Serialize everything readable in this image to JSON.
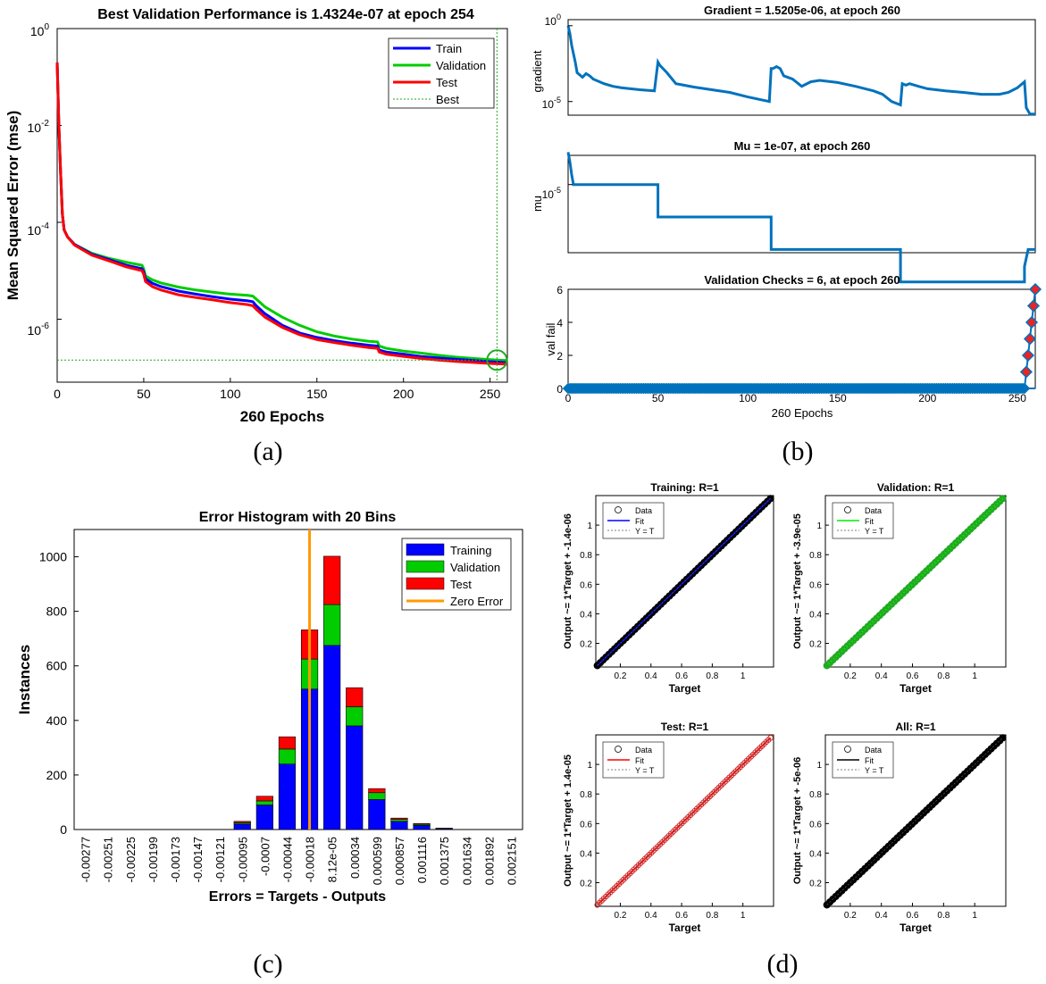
{
  "figure": {
    "panel_labels": [
      "(a)",
      "(b)",
      "(c)",
      "(d)"
    ]
  },
  "colors": {
    "train": "#0000ff",
    "validation": "#00cc00",
    "test": "#ff0000",
    "best": "#22aa22",
    "matlab_blue": "#0072bd",
    "zero_error": "#ff9900",
    "val_marker": "#ee2222",
    "black": "#000000"
  },
  "chart_data": [
    {
      "id": "a",
      "type": "line",
      "yscale": "log",
      "title": "Best Validation Performance is 1.4324e-07 at epoch 254",
      "xlabel": "260 Epochs",
      "ylabel": "Mean Squared Error  (mse)",
      "xlim": [
        0,
        260
      ],
      "ylim_exp": [
        -7.3,
        0
      ],
      "x_ticks": [
        0,
        50,
        100,
        150,
        200,
        250
      ],
      "y_ticks": [
        {
          "label": "10",
          "exp": "0",
          "at": 0
        },
        {
          "label": "10",
          "exp": "-2",
          "at": -2
        },
        {
          "label": "10",
          "exp": "-4",
          "at": -4
        },
        {
          "label": "10",
          "exp": "-6",
          "at": -6
        }
      ],
      "legend": [
        "Train",
        "Validation",
        "Test",
        "Best"
      ],
      "best": {
        "epoch": 254,
        "value": 1.4324e-07
      },
      "series": [
        {
          "name": "Train",
          "x": [
            0,
            1,
            2,
            3,
            4,
            6,
            10,
            20,
            30,
            40,
            49,
            50,
            51,
            55,
            60,
            70,
            80,
            90,
            100,
            110,
            113,
            115,
            120,
            130,
            140,
            150,
            160,
            170,
            180,
            185,
            186,
            190,
            200,
            210,
            220,
            230,
            240,
            250,
            254,
            260
          ],
          "y": [
            0.2,
            0.01,
            0.001,
            0.00015,
            7e-05,
            5e-05,
            3.5e-05,
            2.2e-05,
            1.7e-05,
            1.3e-05,
            1.1e-05,
            9.5e-06,
            6.8e-06,
            5.5e-06,
            4.7e-06,
            3.8e-06,
            3.3e-06,
            2.9e-06,
            2.6e-06,
            2.4e-06,
            2.3e-06,
            1.9e-06,
            1.3e-06,
            7.5e-07,
            5.2e-07,
            4.2e-07,
            3.6e-07,
            3.2e-07,
            2.9e-07,
            2.8e-07,
            2.3e-07,
            2.1e-07,
            1.9e-07,
            1.7e-07,
            1.58e-07,
            1.49e-07,
            1.41e-07,
            1.33e-07,
            1.3e-07,
            1.27e-07
          ]
        },
        {
          "name": "Validation",
          "x": [
            0,
            1,
            2,
            3,
            4,
            6,
            10,
            20,
            30,
            40,
            49,
            50,
            51,
            55,
            60,
            70,
            80,
            90,
            100,
            110,
            113,
            115,
            120,
            130,
            140,
            150,
            160,
            170,
            180,
            185,
            186,
            190,
            200,
            210,
            220,
            230,
            240,
            250,
            254,
            260
          ],
          "y": [
            0.2,
            0.01,
            0.001,
            0.00015,
            7e-05,
            5e-05,
            3.5e-05,
            2.3e-05,
            1.8e-05,
            1.5e-05,
            1.3e-05,
            1.1e-05,
            7.8e-06,
            6.5e-06,
            5.6e-06,
            4.6e-06,
            4e-06,
            3.6e-06,
            3.3e-06,
            3.1e-06,
            3e-06,
            2.6e-06,
            1.8e-06,
            1.1e-06,
            7.5e-07,
            5.5e-07,
            4.5e-07,
            3.9e-07,
            3.5e-07,
            3.4e-07,
            2.8e-07,
            2.5e-07,
            2.2e-07,
            2e-07,
            1.8e-07,
            1.65e-07,
            1.55e-07,
            1.46e-07,
            1.43e-07,
            1.4e-07
          ]
        },
        {
          "name": "Test",
          "x": [
            0,
            1,
            2,
            3,
            4,
            6,
            10,
            20,
            30,
            40,
            49,
            50,
            51,
            55,
            60,
            70,
            80,
            90,
            100,
            110,
            113,
            115,
            120,
            130,
            140,
            150,
            160,
            170,
            180,
            185,
            186,
            190,
            200,
            210,
            220,
            230,
            240,
            250,
            254,
            260
          ],
          "y": [
            0.2,
            0.01,
            0.001,
            0.00015,
            7e-05,
            5e-05,
            3.4e-05,
            2.1e-05,
            1.6e-05,
            1.2e-05,
            1e-05,
            8.5e-06,
            6e-06,
            4.7e-06,
            4e-06,
            3.2e-06,
            2.8e-06,
            2.5e-06,
            2.2e-06,
            2e-06,
            1.9e-06,
            1.6e-06,
            1.1e-06,
            6.8e-07,
            4.8e-07,
            3.8e-07,
            3.3e-07,
            2.9e-07,
            2.6e-07,
            2.5e-07,
            2.1e-07,
            1.9e-07,
            1.7e-07,
            1.55e-07,
            1.43e-07,
            1.35e-07,
            1.28e-07,
            1.22e-07,
            1.2e-07,
            1.18e-07
          ]
        }
      ]
    },
    {
      "id": "b1",
      "type": "line",
      "yscale": "log",
      "title": "Gradient = 1.5205e-06, at epoch 260",
      "ylabel": "gradient",
      "xlim": [
        0,
        260
      ],
      "ylim_exp": [
        -5.9,
        0.4
      ],
      "y_ticks": [
        {
          "label": "10",
          "exp": "0",
          "at": 0
        },
        {
          "label": "10",
          "exp": "-5",
          "at": -5
        }
      ],
      "x": [
        0,
        1,
        2,
        4,
        5,
        8,
        10,
        12,
        14,
        20,
        25,
        30,
        40,
        48,
        50,
        51,
        55,
        60,
        70,
        80,
        90,
        100,
        112,
        113,
        114,
        116,
        118,
        120,
        125,
        130,
        135,
        140,
        150,
        160,
        170,
        175,
        180,
        185,
        186,
        188,
        190,
        195,
        200,
        210,
        220,
        230,
        240,
        245,
        250,
        254,
        255,
        257,
        260
      ],
      "y": [
        1,
        0.3,
        0.05,
        0.004,
        0.0008,
        0.0004,
        0.0007,
        0.0005,
        0.0003,
        0.00015,
        0.0001,
        8e-05,
        6e-05,
        5e-05,
        0.004,
        0.0025,
        0.0008,
        0.00015,
        9e-05,
        6e-05,
        4e-05,
        2e-05,
        1e-05,
        0.0015,
        0.0015,
        0.002,
        0.0015,
        0.0005,
        0.0003,
        0.0001,
        0.0002,
        0.00025,
        0.00018,
        0.0001,
        5e-05,
        3e-05,
        1e-05,
        6e-06,
        0.00015,
        0.00012,
        0.00015,
        0.0001,
        7e-05,
        5e-05,
        4e-05,
        3e-05,
        3e-05,
        4e-05,
        8e-05,
        0.0002,
        4e-06,
        1.5e-06,
        1.5e-06
      ]
    },
    {
      "id": "b2",
      "type": "line",
      "yscale": "log",
      "title": "Mu = 1e-07, at epoch 260",
      "ylabel": "mu",
      "xlim": [
        0,
        260
      ],
      "ylim_exp": [
        -7.1,
        -4.1
      ],
      "y_ticks": [
        {
          "label": "10",
          "exp": "-5",
          "at": -5
        }
      ],
      "x": [
        0,
        1,
        2,
        3,
        50,
        50,
        113,
        113,
        185,
        185,
        254,
        254,
        256,
        258,
        260
      ],
      "y": [
        0.0001,
        5e-05,
        2e-05,
        1e-05,
        1e-05,
        1e-06,
        1e-06,
        1e-07,
        1e-07,
        1e-08,
        1e-08,
        3e-08,
        1e-07,
        1e-07,
        1e-07
      ]
    },
    {
      "id": "b3",
      "type": "scatter",
      "title": "Validation Checks = 6, at epoch 260",
      "xlabel": "260 Epochs",
      "ylabel": "val fail",
      "xlim": [
        0,
        260
      ],
      "ylim": [
        0,
        6
      ],
      "x_ticks": [
        0,
        50,
        100,
        150,
        200,
        250
      ],
      "y_ticks": [
        0,
        2,
        4,
        6
      ],
      "zero_until_epoch": 254,
      "fails": [
        {
          "epoch": 255,
          "value": 1
        },
        {
          "epoch": 256,
          "value": 2
        },
        {
          "epoch": 257,
          "value": 3
        },
        {
          "epoch": 258,
          "value": 4
        },
        {
          "epoch": 259,
          "value": 5
        },
        {
          "epoch": 260,
          "value": 6
        }
      ]
    },
    {
      "id": "c",
      "type": "bar",
      "stacked": true,
      "title": "Error Histogram with 20 Bins",
      "xlabel": "Errors = Targets - Outputs",
      "ylabel": "Instances",
      "ylim": [
        0,
        1100
      ],
      "y_ticks": [
        0,
        200,
        400,
        600,
        800,
        1000
      ],
      "legend": [
        "Training",
        "Validation",
        "Test",
        "Zero Error"
      ],
      "zero_error_bin_position": 10.5,
      "categories": [
        "-0.00277",
        "-0.00251",
        "-0.00225",
        "-0.00199",
        "-0.00173",
        "-0.00147",
        "-0.00121",
        "-0.00095",
        "-0.0007",
        "-0.00044",
        "-0.00018",
        "8.12e-05",
        "0.00034",
        "0.000599",
        "0.000857",
        "0.001116",
        "0.001375",
        "0.001634",
        "0.001892",
        "0.002151"
      ],
      "series": [
        {
          "name": "Training",
          "values": [
            0,
            0,
            0,
            0,
            0,
            0,
            0,
            20,
            90,
            240,
            515,
            675,
            380,
            110,
            30,
            15,
            3,
            0,
            0,
            0
          ]
        },
        {
          "name": "Validation",
          "values": [
            0,
            0,
            0,
            0,
            0,
            0,
            0,
            5,
            15,
            55,
            110,
            150,
            70,
            25,
            7,
            4,
            1,
            0,
            0,
            0
          ]
        },
        {
          "name": "Test",
          "values": [
            0,
            0,
            0,
            0,
            0,
            0,
            0,
            5,
            17,
            45,
            107,
            177,
            70,
            15,
            5,
            3,
            1,
            0,
            0,
            0
          ]
        }
      ]
    },
    {
      "id": "d",
      "type": "scatter",
      "subplots": [
        {
          "title": "Training: R=1",
          "ylabel": "Output ~= 1*Target + -1.4e-06",
          "fit_color": "#0000ff",
          "marker_color": "#000000",
          "fill": true
        },
        {
          "title": "Validation: R=1",
          "ylabel": "Output ~= 1*Target + -3.9e-05",
          "fit_color": "#00ee00",
          "marker_color": "#22aa22",
          "fill": true
        },
        {
          "title": "Test: R=1",
          "ylabel": "Output ~= 1*Target + 1.4e-05",
          "fit_color": "#ff0000",
          "marker_color": "#cc2222",
          "fill": false
        },
        {
          "title": "All: R=1",
          "ylabel": "Output ~= 1*Target + -5e-06",
          "fit_color": "#000000",
          "marker_color": "#000000",
          "fill": true
        }
      ],
      "xlabel": "Target",
      "xlim": [
        0.04,
        1.2
      ],
      "ylim": [
        0.04,
        1.2
      ],
      "x_ticks": [
        "0.2",
        "0.4",
        "0.6",
        "0.8",
        "1"
      ],
      "y_ticks": [
        "0.2",
        "0.4",
        "0.6",
        "0.8",
        "1"
      ],
      "legend": [
        "Data",
        "Fit",
        "Y = T"
      ]
    }
  ]
}
